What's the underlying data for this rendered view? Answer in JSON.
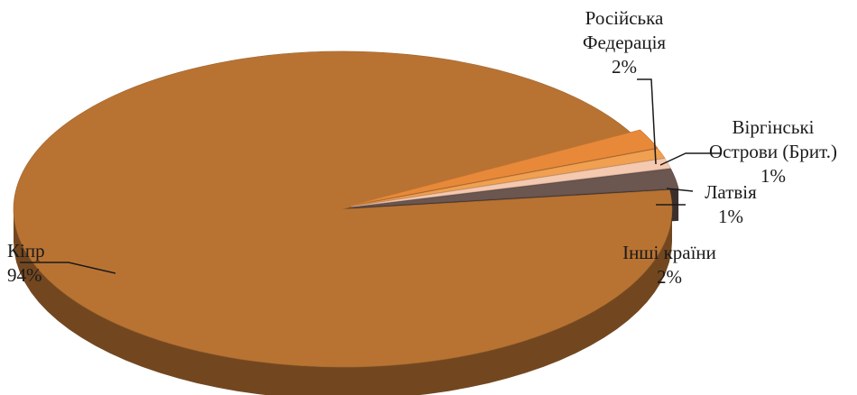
{
  "chart_data": {
    "type": "pie",
    "title": "",
    "categories": [
      "Кіпр",
      "Російська Федерація",
      "Віргінські Острови (Брит.)",
      "Латвія",
      "Інші країни"
    ],
    "values": [
      94,
      2,
      1,
      1,
      2
    ],
    "value_labels": [
      "94%",
      "2%",
      "1%",
      "1%",
      "2%"
    ],
    "label_lines": [
      [
        "Кіпр",
        "94%"
      ],
      [
        "Російська",
        "Федерація",
        "2%"
      ],
      [
        "Віргінські",
        "Острови (Брит.)",
        "1%"
      ],
      [
        "Латвія",
        "1%"
      ],
      [
        "Інші країни",
        "2%"
      ]
    ],
    "colors": [
      "#B87333",
      "#E8893A",
      "#F0A050",
      "#F5C8B0",
      "#6B5650"
    ],
    "style": "3d",
    "legend": "none"
  }
}
